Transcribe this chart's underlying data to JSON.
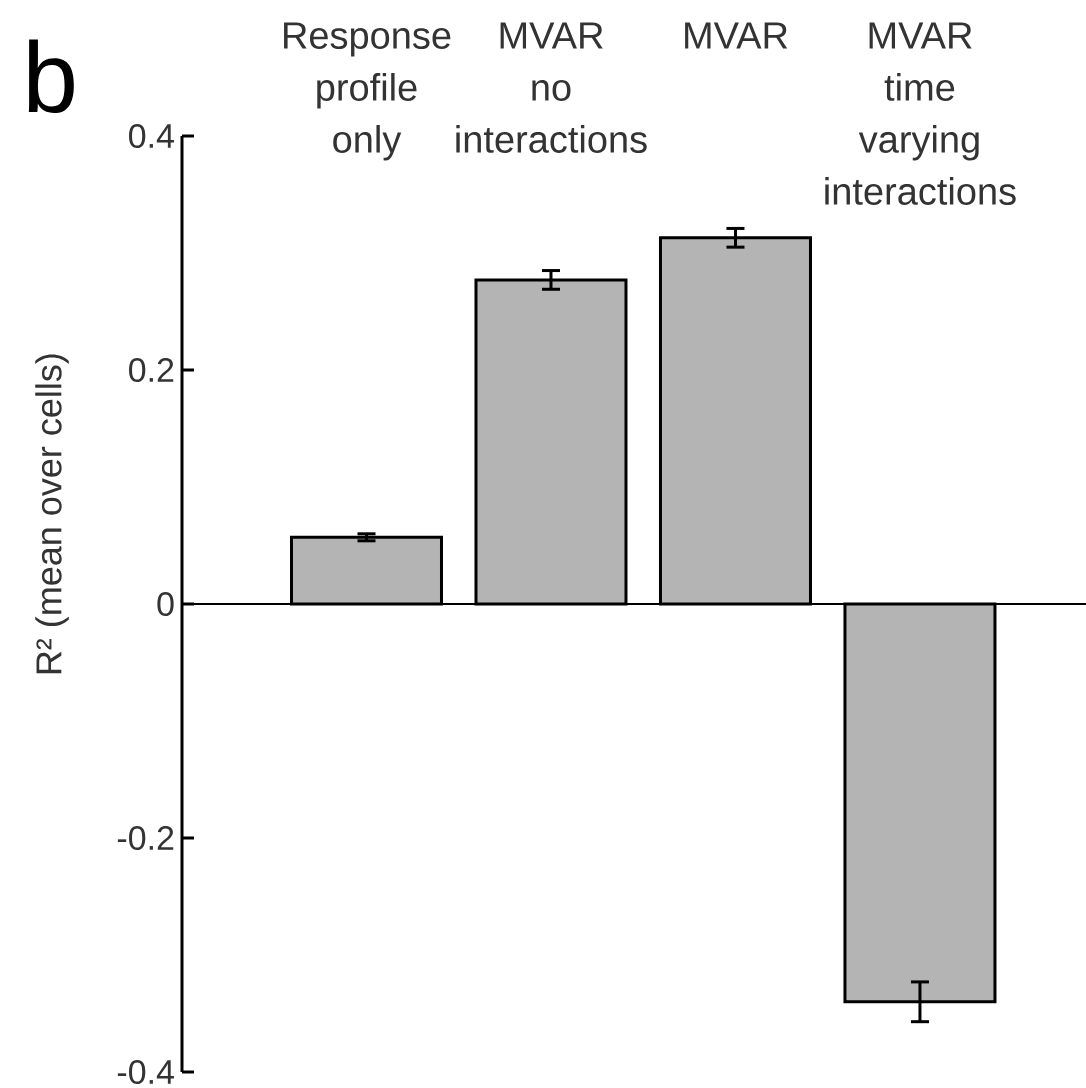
{
  "chart_data": {
    "type": "bar",
    "title": "b",
    "ylabel": "R² (mean over cells)",
    "categories": [
      "Response profile only",
      "MVAR no interactions",
      "MVAR",
      "MVAR time varying interactions"
    ],
    "values": [
      0.057,
      0.277,
      0.313,
      -0.34
    ],
    "errors": [
      0.003,
      0.008,
      0.008,
      0.017
    ],
    "color": "#b4b4b4",
    "ylim": [
      -0.4,
      0.4
    ],
    "yticks": [
      -0.4,
      -0.2,
      0,
      0.2,
      0.4
    ]
  }
}
